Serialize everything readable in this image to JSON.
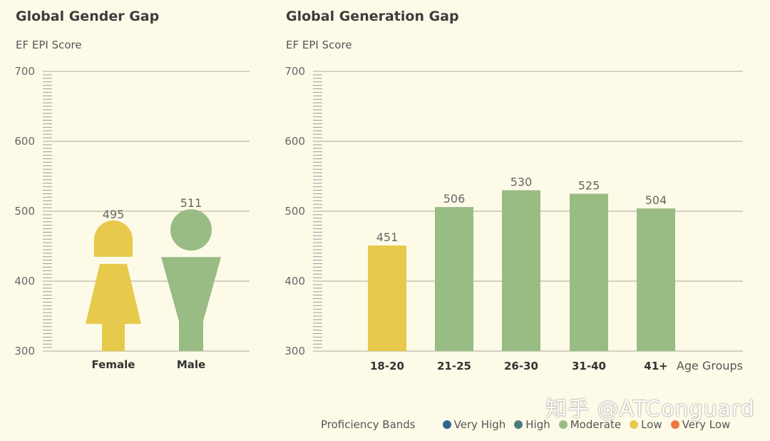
{
  "chart_data": [
    {
      "type": "bar",
      "title": "Global Gender Gap",
      "ylabel": "EF EPI Score",
      "ylim": [
        300,
        700
      ],
      "yticks": [
        300,
        400,
        500,
        600,
        700
      ],
      "categories": [
        "Female",
        "Male"
      ],
      "values": [
        495,
        511
      ],
      "colors": [
        "#e7c94c",
        "#99bb84"
      ],
      "grid": true,
      "legend": "bottom-right"
    },
    {
      "type": "bar",
      "title": "Global Generation Gap",
      "ylabel": "EF EPI Score",
      "xlabel": "Age Groups",
      "ylim": [
        300,
        700
      ],
      "yticks": [
        300,
        400,
        500,
        600,
        700
      ],
      "categories": [
        "18-20",
        "21-25",
        "26-30",
        "31-40",
        "41+"
      ],
      "values": [
        451,
        506,
        530,
        525,
        504
      ],
      "colors": [
        "#e7c94c",
        "#99bb84",
        "#99bb84",
        "#99bb84",
        "#99bb84"
      ],
      "grid": true,
      "legend": "bottom-right"
    }
  ],
  "legend": {
    "title": "Proficiency Bands",
    "items": [
      {
        "label": "Very High",
        "color": "#2f6690"
      },
      {
        "label": "High",
        "color": "#4a7c78"
      },
      {
        "label": "Moderate",
        "color": "#99bb84"
      },
      {
        "label": "Low",
        "color": "#e7c94c"
      },
      {
        "label": "Very Low",
        "color": "#ee7744"
      }
    ]
  },
  "watermark": "知乎 @ATConguard"
}
